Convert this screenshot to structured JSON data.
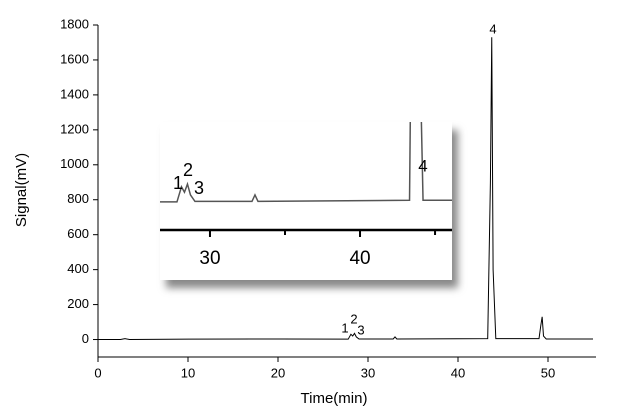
{
  "chart_data": {
    "type": "line",
    "xlabel": "Time(min)",
    "ylabel": "Signal(mV)",
    "x": [
      0,
      2.5,
      3,
      3.5,
      10,
      20,
      27.8,
      28.1,
      28.3,
      28.5,
      28.7,
      29,
      32.8,
      33,
      33.2,
      43.3,
      43.6,
      43.75,
      43.9,
      44.2,
      49,
      49.2,
      49.35,
      49.5,
      49.8,
      55
    ],
    "values": [
      0,
      0,
      5,
      0,
      2,
      3,
      2,
      30,
      20,
      35,
      15,
      3,
      3,
      15,
      3,
      5,
      900,
      1730,
      400,
      5,
      5,
      80,
      130,
      20,
      3,
      3
    ],
    "color": "#000000",
    "xlim": [
      0,
      55
    ],
    "xticks": [
      0,
      10,
      20,
      30,
      40,
      50
    ],
    "ylim": [
      -100,
      1800
    ],
    "yticks": [
      0,
      200,
      400,
      600,
      800,
      1000,
      1200,
      1400,
      1600,
      1800
    ],
    "annotations": [
      "1",
      "2",
      "3",
      "4"
    ],
    "inset": {
      "xlim": [
        26.67,
        46.13
      ],
      "xticks": [
        30,
        40
      ],
      "xminor": [
        35,
        45
      ],
      "ylim": [
        -50,
        150
      ]
    }
  }
}
